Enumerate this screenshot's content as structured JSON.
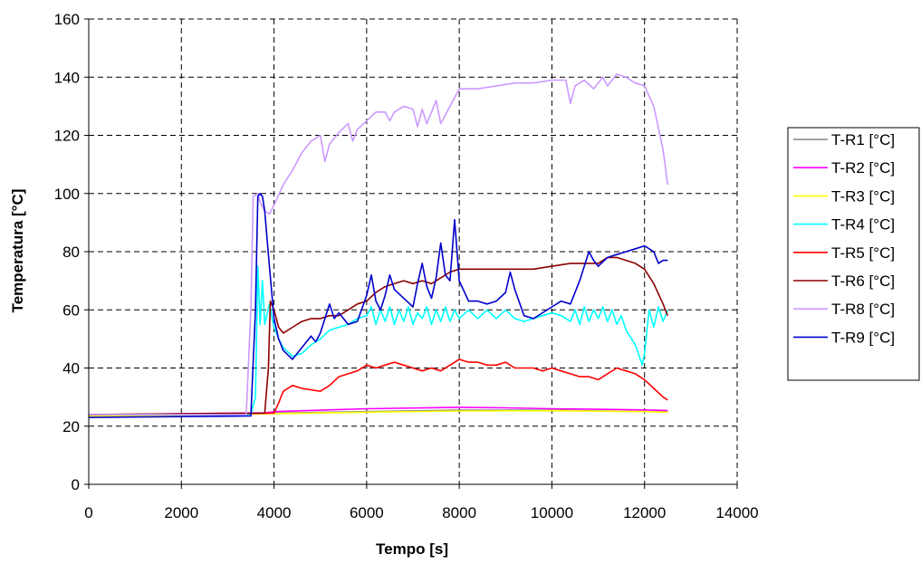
{
  "chart_data": {
    "type": "line",
    "xlabel": "Tempo [s]",
    "ylabel": "Temperatura [°C]",
    "xlim": [
      0,
      14000
    ],
    "ylim": [
      0,
      160
    ],
    "x_ticks": [
      0,
      2000,
      4000,
      6000,
      8000,
      10000,
      12000,
      14000
    ],
    "y_ticks": [
      0,
      20,
      40,
      60,
      80,
      100,
      120,
      140,
      160
    ],
    "grid": true,
    "legend_position": "right",
    "series": [
      {
        "name": "T-R1 [°C]",
        "color": "#808080",
        "points": [
          [
            0,
            23.5
          ],
          [
            3000,
            24
          ],
          [
            4000,
            24.5
          ],
          [
            6000,
            25
          ],
          [
            8000,
            25.5
          ],
          [
            10000,
            25.5
          ],
          [
            12000,
            25
          ],
          [
            12500,
            25
          ]
        ]
      },
      {
        "name": "T-R2 [°C]",
        "color": "#ff00ff",
        "points": [
          [
            0,
            23.8
          ],
          [
            2000,
            24.3
          ],
          [
            3800,
            24.6
          ],
          [
            4000,
            25
          ],
          [
            6000,
            26
          ],
          [
            8000,
            26.5
          ],
          [
            9000,
            26.3
          ],
          [
            10000,
            26
          ],
          [
            11000,
            25.8
          ],
          [
            12000,
            25.6
          ],
          [
            12500,
            25.4
          ]
        ]
      },
      {
        "name": "T-R3 [°C]",
        "color": "#ffff00",
        "points": [
          [
            0,
            23.5
          ],
          [
            3000,
            24
          ],
          [
            4000,
            24.3
          ],
          [
            6000,
            24.8
          ],
          [
            8000,
            25.2
          ],
          [
            10000,
            25.3
          ],
          [
            12000,
            25
          ],
          [
            12500,
            24.8
          ]
        ]
      },
      {
        "name": "T-R4 [°C]",
        "color": "#00ffff",
        "points": [
          [
            0,
            24
          ],
          [
            3500,
            24
          ],
          [
            3600,
            30
          ],
          [
            3650,
            75
          ],
          [
            3700,
            55
          ],
          [
            3750,
            70
          ],
          [
            3800,
            55
          ],
          [
            3900,
            62
          ],
          [
            4000,
            54
          ],
          [
            4100,
            50
          ],
          [
            4200,
            47
          ],
          [
            4400,
            44
          ],
          [
            4600,
            45
          ],
          [
            4800,
            48
          ],
          [
            5000,
            50
          ],
          [
            5200,
            53
          ],
          [
            5400,
            54
          ],
          [
            5600,
            55
          ],
          [
            5800,
            57
          ],
          [
            6000,
            58
          ],
          [
            6100,
            61
          ],
          [
            6200,
            55
          ],
          [
            6300,
            60
          ],
          [
            6400,
            56
          ],
          [
            6500,
            61
          ],
          [
            6600,
            55
          ],
          [
            6700,
            60
          ],
          [
            6800,
            56
          ],
          [
            6900,
            61
          ],
          [
            7000,
            55
          ],
          [
            7100,
            59
          ],
          [
            7200,
            57
          ],
          [
            7300,
            61
          ],
          [
            7400,
            55
          ],
          [
            7500,
            60
          ],
          [
            7600,
            56
          ],
          [
            7700,
            61
          ],
          [
            7800,
            56
          ],
          [
            7900,
            60
          ],
          [
            8000,
            57
          ],
          [
            8200,
            60
          ],
          [
            8400,
            57
          ],
          [
            8600,
            60
          ],
          [
            8800,
            57
          ],
          [
            9000,
            60
          ],
          [
            9200,
            57
          ],
          [
            9400,
            56
          ],
          [
            9600,
            57
          ],
          [
            9800,
            58
          ],
          [
            10000,
            59
          ],
          [
            10200,
            58
          ],
          [
            10400,
            56
          ],
          [
            10500,
            60
          ],
          [
            10600,
            55
          ],
          [
            10700,
            61
          ],
          [
            10800,
            56
          ],
          [
            10900,
            60
          ],
          [
            11000,
            57
          ],
          [
            11100,
            61
          ],
          [
            11200,
            56
          ],
          [
            11300,
            60
          ],
          [
            11400,
            55
          ],
          [
            11500,
            58
          ],
          [
            11600,
            53
          ],
          [
            11800,
            48
          ],
          [
            11950,
            41
          ],
          [
            12000,
            45
          ],
          [
            12100,
            60
          ],
          [
            12200,
            54
          ],
          [
            12300,
            61
          ],
          [
            12400,
            56
          ],
          [
            12500,
            60
          ]
        ]
      },
      {
        "name": "T-R5 [°C]",
        "color": "#ff0000",
        "points": [
          [
            0,
            24
          ],
          [
            3000,
            24.2
          ],
          [
            4000,
            24.5
          ],
          [
            4100,
            28
          ],
          [
            4200,
            32
          ],
          [
            4400,
            34
          ],
          [
            4600,
            33
          ],
          [
            5000,
            32
          ],
          [
            5200,
            34
          ],
          [
            5400,
            37
          ],
          [
            5600,
            38
          ],
          [
            5800,
            39
          ],
          [
            6000,
            41
          ],
          [
            6200,
            40
          ],
          [
            6400,
            41
          ],
          [
            6600,
            42
          ],
          [
            6800,
            41
          ],
          [
            7000,
            40
          ],
          [
            7200,
            39
          ],
          [
            7400,
            40
          ],
          [
            7600,
            39
          ],
          [
            7800,
            41
          ],
          [
            8000,
            43
          ],
          [
            8200,
            42
          ],
          [
            8400,
            42
          ],
          [
            8600,
            41
          ],
          [
            8800,
            41
          ],
          [
            9000,
            42
          ],
          [
            9200,
            40
          ],
          [
            9400,
            40
          ],
          [
            9600,
            40
          ],
          [
            9800,
            39
          ],
          [
            10000,
            40
          ],
          [
            10200,
            39
          ],
          [
            10400,
            38
          ],
          [
            10600,
            37
          ],
          [
            10800,
            37
          ],
          [
            11000,
            36
          ],
          [
            11200,
            38
          ],
          [
            11400,
            40
          ],
          [
            11600,
            39
          ],
          [
            11800,
            38
          ],
          [
            12000,
            36
          ],
          [
            12200,
            33
          ],
          [
            12400,
            30
          ],
          [
            12500,
            29
          ]
        ]
      },
      {
        "name": "T-R6 [°C]",
        "color": "#8b0000",
        "points": [
          [
            0,
            24
          ],
          [
            3800,
            24.5
          ],
          [
            3880,
            40
          ],
          [
            3920,
            63
          ],
          [
            4000,
            60
          ],
          [
            4100,
            54
          ],
          [
            4200,
            52
          ],
          [
            4400,
            54
          ],
          [
            4600,
            56
          ],
          [
            4800,
            57
          ],
          [
            5000,
            57
          ],
          [
            5200,
            58
          ],
          [
            5400,
            58
          ],
          [
            5600,
            60
          ],
          [
            5800,
            62
          ],
          [
            6000,
            63
          ],
          [
            6200,
            66
          ],
          [
            6400,
            68
          ],
          [
            6600,
            69
          ],
          [
            6800,
            70
          ],
          [
            7000,
            69
          ],
          [
            7200,
            70
          ],
          [
            7400,
            69
          ],
          [
            7600,
            71
          ],
          [
            7800,
            73
          ],
          [
            8000,
            74
          ],
          [
            8400,
            74
          ],
          [
            8800,
            74
          ],
          [
            9200,
            74
          ],
          [
            9600,
            74
          ],
          [
            10000,
            75
          ],
          [
            10400,
            76
          ],
          [
            10800,
            76
          ],
          [
            11000,
            76
          ],
          [
            11200,
            78
          ],
          [
            11400,
            78
          ],
          [
            11600,
            77
          ],
          [
            11800,
            76
          ],
          [
            12000,
            74
          ],
          [
            12200,
            69
          ],
          [
            12400,
            62
          ],
          [
            12500,
            58
          ]
        ]
      },
      {
        "name": "T-R8 [°C]",
        "color": "#cc99ff",
        "points": [
          [
            0,
            24
          ],
          [
            3400,
            24
          ],
          [
            3500,
            60
          ],
          [
            3550,
            99
          ],
          [
            3650,
            100
          ],
          [
            3700,
            97
          ],
          [
            3800,
            94
          ],
          [
            3900,
            93
          ],
          [
            4000,
            96
          ],
          [
            4200,
            103
          ],
          [
            4400,
            108
          ],
          [
            4600,
            114
          ],
          [
            4800,
            118
          ],
          [
            5000,
            120
          ],
          [
            5100,
            111
          ],
          [
            5200,
            117
          ],
          [
            5400,
            121
          ],
          [
            5600,
            124
          ],
          [
            5700,
            118
          ],
          [
            5800,
            122
          ],
          [
            6000,
            125
          ],
          [
            6200,
            128
          ],
          [
            6400,
            128
          ],
          [
            6500,
            125
          ],
          [
            6600,
            128
          ],
          [
            6800,
            130
          ],
          [
            7000,
            129
          ],
          [
            7100,
            123
          ],
          [
            7200,
            129
          ],
          [
            7300,
            124
          ],
          [
            7400,
            128
          ],
          [
            7500,
            132
          ],
          [
            7600,
            124
          ],
          [
            7700,
            127
          ],
          [
            7800,
            130
          ],
          [
            8000,
            136
          ],
          [
            8400,
            136
          ],
          [
            8800,
            137
          ],
          [
            9200,
            138
          ],
          [
            9600,
            138
          ],
          [
            10000,
            139
          ],
          [
            10300,
            139
          ],
          [
            10400,
            131
          ],
          [
            10500,
            137
          ],
          [
            10700,
            139
          ],
          [
            10900,
            136
          ],
          [
            11100,
            140
          ],
          [
            11200,
            137
          ],
          [
            11400,
            141
          ],
          [
            11600,
            140
          ],
          [
            11800,
            138
          ],
          [
            12000,
            137
          ],
          [
            12200,
            130
          ],
          [
            12400,
            115
          ],
          [
            12500,
            103
          ]
        ]
      },
      {
        "name": "T-R9 [°C]",
        "color": "#0000cc",
        "points": [
          [
            0,
            23
          ],
          [
            3500,
            23.5
          ],
          [
            3600,
            60
          ],
          [
            3650,
            99
          ],
          [
            3700,
            100
          ],
          [
            3750,
            99
          ],
          [
            3800,
            94
          ],
          [
            3900,
            75
          ],
          [
            4000,
            57
          ],
          [
            4100,
            50
          ],
          [
            4200,
            46
          ],
          [
            4400,
            43
          ],
          [
            4600,
            47
          ],
          [
            4800,
            51
          ],
          [
            4900,
            49
          ],
          [
            5000,
            52
          ],
          [
            5100,
            57
          ],
          [
            5200,
            62
          ],
          [
            5300,
            57
          ],
          [
            5400,
            59
          ],
          [
            5600,
            55
          ],
          [
            5800,
            56
          ],
          [
            6000,
            65
          ],
          [
            6100,
            72
          ],
          [
            6200,
            63
          ],
          [
            6300,
            60
          ],
          [
            6400,
            65
          ],
          [
            6500,
            72
          ],
          [
            6600,
            67
          ],
          [
            6800,
            64
          ],
          [
            7000,
            61
          ],
          [
            7100,
            69
          ],
          [
            7200,
            76
          ],
          [
            7300,
            68
          ],
          [
            7400,
            64
          ],
          [
            7500,
            71
          ],
          [
            7600,
            83
          ],
          [
            7700,
            72
          ],
          [
            7800,
            70
          ],
          [
            7900,
            91
          ],
          [
            8000,
            70
          ],
          [
            8200,
            63
          ],
          [
            8400,
            63
          ],
          [
            8600,
            62
          ],
          [
            8800,
            63
          ],
          [
            9000,
            66
          ],
          [
            9100,
            73
          ],
          [
            9200,
            67
          ],
          [
            9400,
            58
          ],
          [
            9600,
            57
          ],
          [
            9800,
            59
          ],
          [
            10000,
            61
          ],
          [
            10200,
            63
          ],
          [
            10400,
            62
          ],
          [
            10600,
            70
          ],
          [
            10800,
            80
          ],
          [
            10900,
            77
          ],
          [
            11000,
            75
          ],
          [
            11200,
            78
          ],
          [
            11400,
            79
          ],
          [
            11600,
            80
          ],
          [
            11800,
            81
          ],
          [
            12000,
            82
          ],
          [
            12200,
            80
          ],
          [
            12300,
            76
          ],
          [
            12400,
            77
          ],
          [
            12500,
            77
          ]
        ]
      }
    ]
  }
}
